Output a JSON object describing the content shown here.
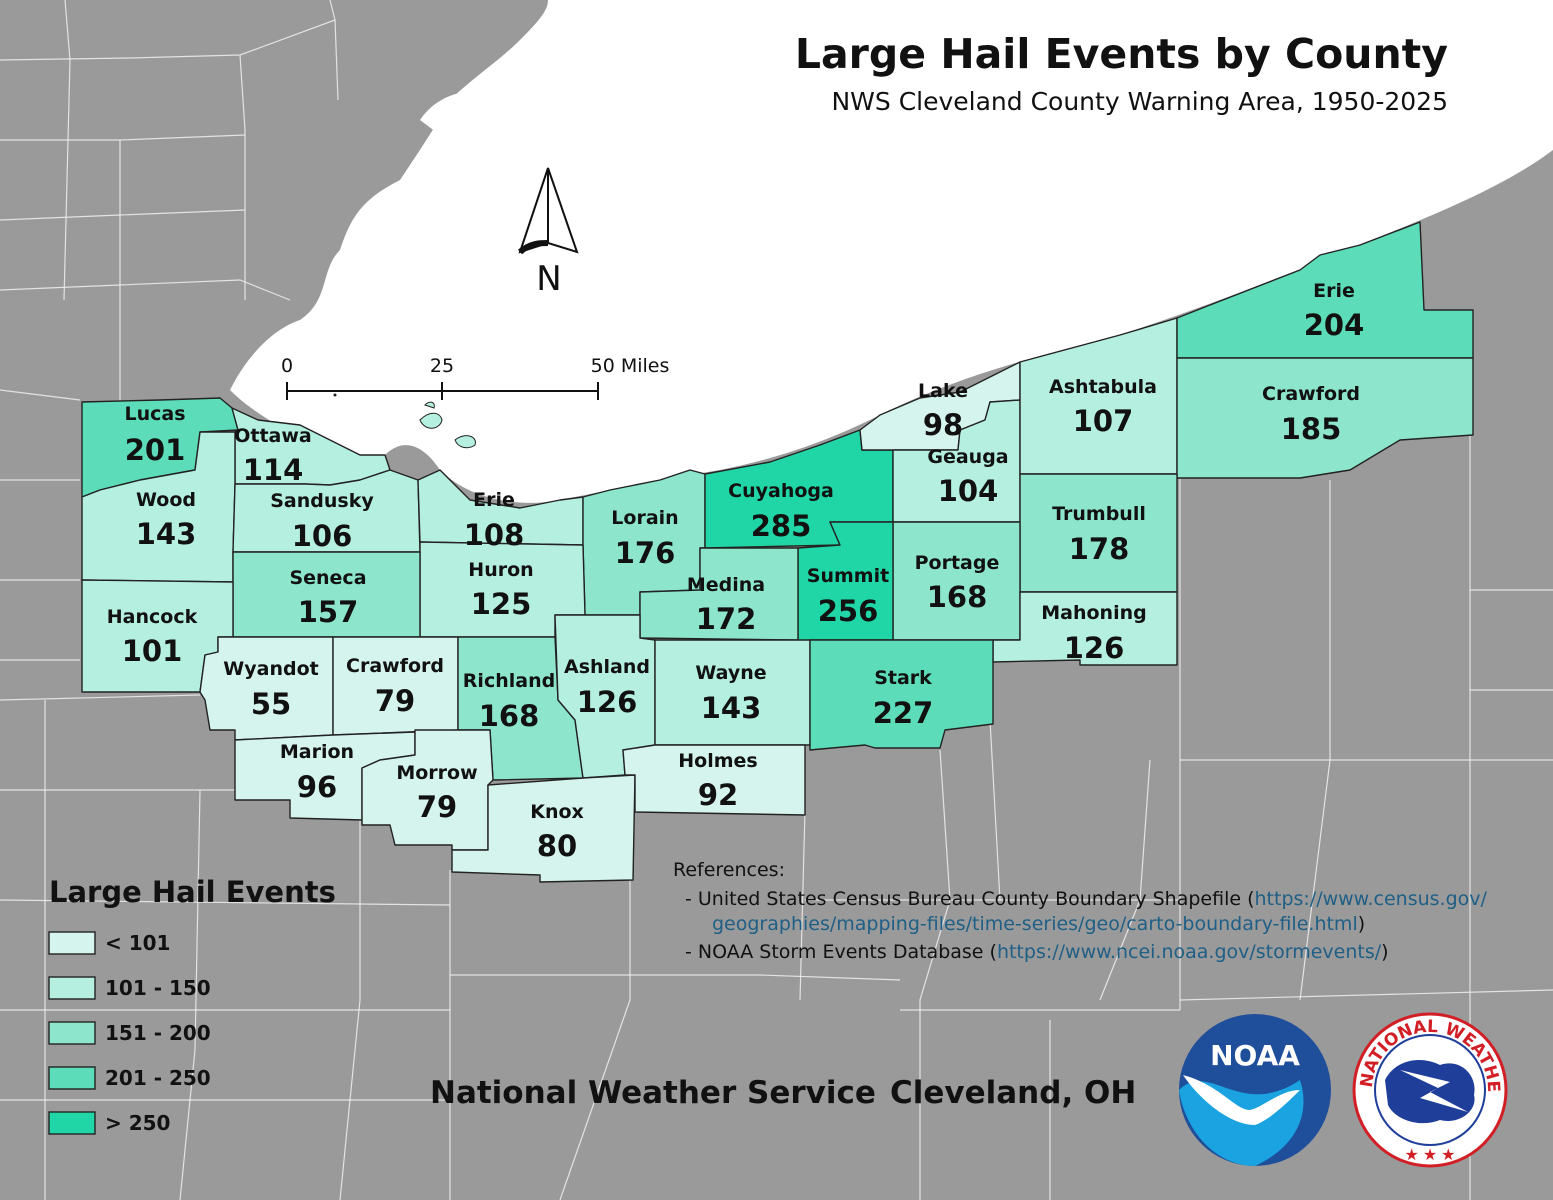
{
  "title": "Large Hail Events by County",
  "subtitle": "NWS Cleveland County Warning Area, 1950-2025",
  "north_arrow": {
    "label": "N"
  },
  "scale_bar": {
    "labels": [
      "0",
      "25",
      "50 Miles"
    ]
  },
  "colors": {
    "bg_counties": "#9a9a9a",
    "lake": "#ffffff",
    "class_colors": [
      "#d5f4ed",
      "#b4efdf",
      "#8de6cc",
      "#5cdcb8",
      "#21d6a6"
    ]
  },
  "legend": {
    "title": "Large Hail Events",
    "classes": [
      {
        "label": "< 101",
        "color": "#d5f4ed"
      },
      {
        "label": "101 - 150",
        "color": "#b4efdf"
      },
      {
        "label": "151 - 200",
        "color": "#8de6cc"
      },
      {
        "label": "201 - 250",
        "color": "#5cdcb8"
      },
      {
        "label": "> 250",
        "color": "#21d6a6"
      }
    ]
  },
  "counties": [
    {
      "id": "lucas",
      "name": "Lucas",
      "value": "201"
    },
    {
      "id": "ottawa",
      "name": "Ottawa",
      "value": "114"
    },
    {
      "id": "wood",
      "name": "Wood",
      "value": "143"
    },
    {
      "id": "sandusky",
      "name": "Sandusky",
      "value": "106"
    },
    {
      "id": "erie-oh",
      "name": "Erie",
      "value": "108"
    },
    {
      "id": "lorain",
      "name": "Lorain",
      "value": "176"
    },
    {
      "id": "cuyahoga",
      "name": "Cuyahoga",
      "value": "285"
    },
    {
      "id": "lake",
      "name": "Lake",
      "value": "98"
    },
    {
      "id": "geauga",
      "name": "Geauga",
      "value": "104"
    },
    {
      "id": "ashtabula",
      "name": "Ashtabula",
      "value": "107"
    },
    {
      "id": "erie-pa",
      "name": "Erie",
      "value": "204"
    },
    {
      "id": "crawford-pa",
      "name": "Crawford",
      "value": "185"
    },
    {
      "id": "trumbull",
      "name": "Trumbull",
      "value": "178"
    },
    {
      "id": "portage",
      "name": "Portage",
      "value": "168"
    },
    {
      "id": "summit",
      "name": "Summit",
      "value": "256"
    },
    {
      "id": "medina",
      "name": "Medina",
      "value": "172"
    },
    {
      "id": "huron",
      "name": "Huron",
      "value": "125"
    },
    {
      "id": "seneca",
      "name": "Seneca",
      "value": "157"
    },
    {
      "id": "hancock",
      "name": "Hancock",
      "value": "101"
    },
    {
      "id": "mahoning",
      "name": "Mahoning",
      "value": "126"
    },
    {
      "id": "wyandot",
      "name": "Wyandot",
      "value": "55"
    },
    {
      "id": "crawford-oh",
      "name": "Crawford",
      "value": "79"
    },
    {
      "id": "richland",
      "name": "Richland",
      "value": "168"
    },
    {
      "id": "ashland",
      "name": "Ashland",
      "value": "126"
    },
    {
      "id": "wayne",
      "name": "Wayne",
      "value": "143"
    },
    {
      "id": "stark",
      "name": "Stark",
      "value": "227"
    },
    {
      "id": "marion",
      "name": "Marion",
      "value": "96"
    },
    {
      "id": "morrow",
      "name": "Morrow",
      "value": "79"
    },
    {
      "id": "knox",
      "name": "Knox",
      "value": "80"
    },
    {
      "id": "holmes",
      "name": "Holmes",
      "value": "92"
    }
  ],
  "references": {
    "heading": "References:",
    "items": [
      {
        "prefix": "- United States Census Bureau County Boundary Shapefile (",
        "link": "https://www.census.gov/",
        "link2": "geographies/mapping-files/time-series/geo/carto-boundary-file.html",
        "suffix": ")"
      },
      {
        "prefix": "- NOAA Storm Events Database (",
        "link": "https://www.ncei.noaa.gov/stormevents/",
        "suffix": ")"
      }
    ]
  },
  "footer": {
    "org": "National Weather Service",
    "office": "Cleveland, OH"
  },
  "logos": {
    "noaa": "NOAA",
    "nws": "NATIONAL WEATHER SERVICE"
  }
}
